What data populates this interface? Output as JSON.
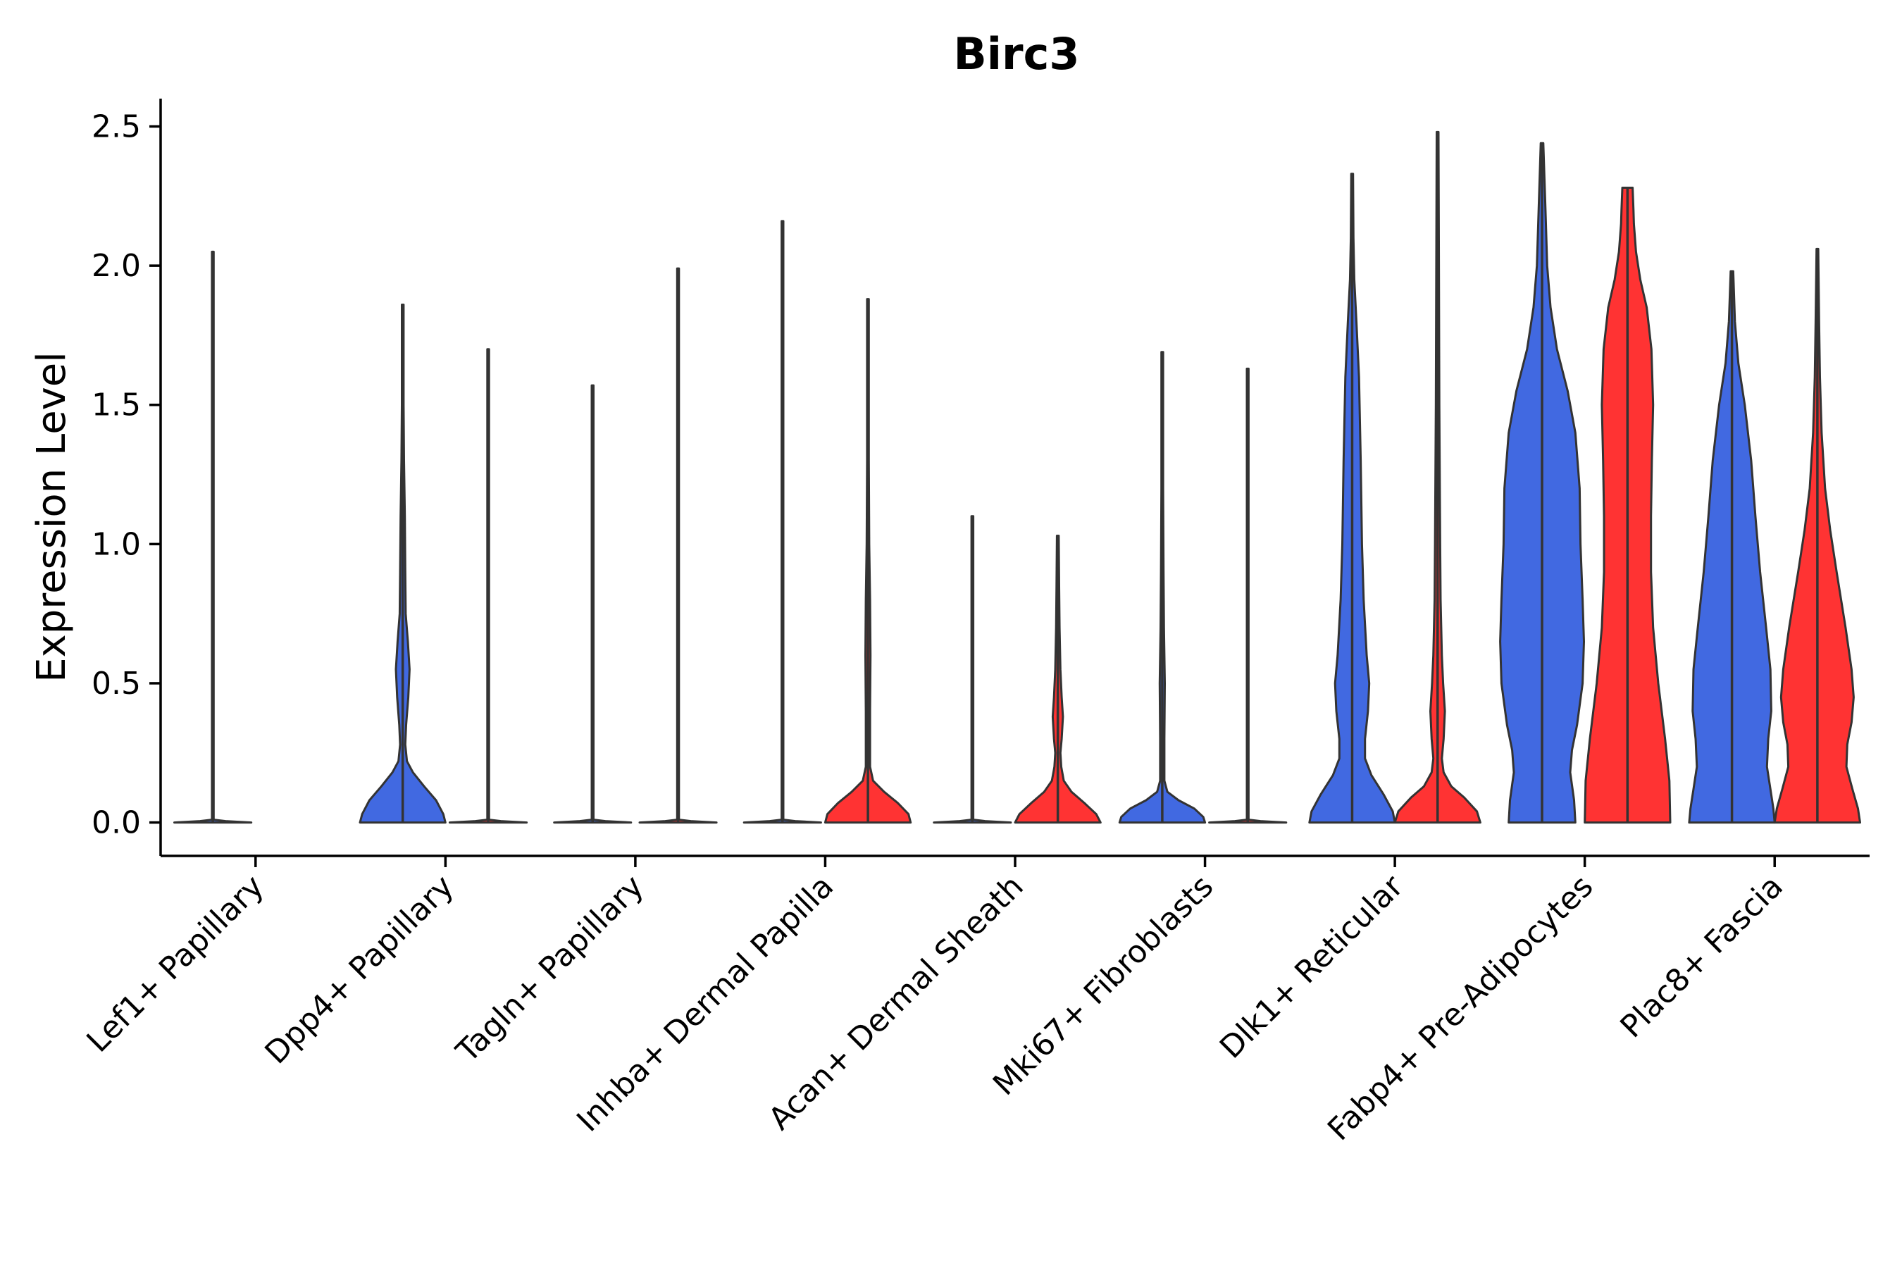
{
  "chart_data": {
    "type": "violin",
    "title": "Birc3",
    "xlabel": "",
    "ylabel": "Expression Level",
    "ylim": [
      -0.12,
      2.6
    ],
    "yticks": [
      0.0,
      0.5,
      1.0,
      1.5,
      2.0,
      2.5
    ],
    "ytick_labels": [
      "0.0",
      "0.5",
      "1.0",
      "1.5",
      "2.0",
      "2.5"
    ],
    "grid": false,
    "legend": "none",
    "series_colors": {
      "group1": "#4169E1",
      "group2": "#FF3333"
    },
    "categories": [
      "Lef1+ Papillary",
      "Dpp4+ Papillary",
      "Tagln+ Papillary",
      "Inhba+ Dermal Papilla",
      "Acan+ Dermal Sheath",
      "Mki67+ Fibroblasts",
      "Dlk1+ Reticular",
      "Fabp4+ Pre-Adipocytes",
      "Plac8+ Fascia"
    ],
    "violins": [
      {
        "category": "Lef1+ Papillary",
        "group": "group1",
        "color": "#4169E1",
        "max": 2.05,
        "density": [
          [
            0,
            0.9
          ],
          [
            0.005,
            0.3
          ],
          [
            0.01,
            0.02
          ],
          [
            2.05,
            0.02
          ]
        ]
      },
      {
        "category": "Lef1+ Papillary",
        "group": "group2",
        "color": "#FF3333",
        "max": 0.0,
        "density": []
      },
      {
        "category": "Dpp4+ Papillary",
        "group": "group1",
        "color": "#4169E1",
        "max": 1.86,
        "density": [
          [
            0,
            1
          ],
          [
            0.03,
            0.95
          ],
          [
            0.08,
            0.78
          ],
          [
            0.13,
            0.5
          ],
          [
            0.18,
            0.24
          ],
          [
            0.22,
            0.1
          ],
          [
            0.28,
            0.06
          ],
          [
            0.35,
            0.08
          ],
          [
            0.45,
            0.13
          ],
          [
            0.55,
            0.16
          ],
          [
            0.65,
            0.12
          ],
          [
            0.75,
            0.07
          ],
          [
            0.9,
            0.06
          ],
          [
            1.1,
            0.05
          ],
          [
            1.3,
            0.03
          ],
          [
            1.5,
            0.02
          ],
          [
            1.86,
            0.02
          ]
        ]
      },
      {
        "category": "Dpp4+ Papillary",
        "group": "group2",
        "color": "#FF3333",
        "max": 1.7,
        "density": [
          [
            0,
            0.9
          ],
          [
            0.005,
            0.3
          ],
          [
            0.01,
            0.02
          ],
          [
            1.7,
            0.02
          ]
        ]
      },
      {
        "category": "Tagln+ Papillary",
        "group": "group1",
        "color": "#4169E1",
        "max": 1.57,
        "density": [
          [
            0,
            0.9
          ],
          [
            0.005,
            0.3
          ],
          [
            0.01,
            0.02
          ],
          [
            1.57,
            0.02
          ]
        ]
      },
      {
        "category": "Tagln+ Papillary",
        "group": "group2",
        "color": "#FF3333",
        "max": 1.99,
        "density": [
          [
            0,
            0.9
          ],
          [
            0.005,
            0.3
          ],
          [
            0.01,
            0.02
          ],
          [
            1.99,
            0.02
          ]
        ]
      },
      {
        "category": "Inhba+ Dermal Papilla",
        "group": "group1",
        "color": "#4169E1",
        "max": 2.16,
        "density": [
          [
            0,
            0.9
          ],
          [
            0.005,
            0.3
          ],
          [
            0.01,
            0.02
          ],
          [
            2.16,
            0.02
          ]
        ]
      },
      {
        "category": "Inhba+ Dermal Papilla",
        "group": "group2",
        "color": "#FF3333",
        "max": 1.88,
        "density": [
          [
            0,
            1
          ],
          [
            0.03,
            0.95
          ],
          [
            0.07,
            0.7
          ],
          [
            0.11,
            0.38
          ],
          [
            0.15,
            0.12
          ],
          [
            0.2,
            0.05
          ],
          [
            0.4,
            0.05
          ],
          [
            0.6,
            0.06
          ],
          [
            0.8,
            0.05
          ],
          [
            1.0,
            0.03
          ],
          [
            1.3,
            0.02
          ],
          [
            1.88,
            0.02
          ]
        ]
      },
      {
        "category": "Acan+ Dermal Sheath",
        "group": "group1",
        "color": "#4169E1",
        "max": 1.1,
        "density": [
          [
            0,
            0.9
          ],
          [
            0.005,
            0.3
          ],
          [
            0.01,
            0.02
          ],
          [
            1.1,
            0.02
          ]
        ]
      },
      {
        "category": "Acan+ Dermal Sheath",
        "group": "group2",
        "color": "#FF3333",
        "max": 1.03,
        "density": [
          [
            0,
            1
          ],
          [
            0.03,
            0.9
          ],
          [
            0.07,
            0.62
          ],
          [
            0.11,
            0.32
          ],
          [
            0.15,
            0.14
          ],
          [
            0.2,
            0.08
          ],
          [
            0.25,
            0.06
          ],
          [
            0.3,
            0.09
          ],
          [
            0.38,
            0.12
          ],
          [
            0.45,
            0.09
          ],
          [
            0.55,
            0.06
          ],
          [
            0.7,
            0.04
          ],
          [
            0.85,
            0.03
          ],
          [
            1.03,
            0.02
          ]
        ]
      },
      {
        "category": "Mki67+ Fibroblasts",
        "group": "group1",
        "color": "#4169E1",
        "max": 1.69,
        "density": [
          [
            0,
            1
          ],
          [
            0.02,
            0.96
          ],
          [
            0.05,
            0.75
          ],
          [
            0.08,
            0.38
          ],
          [
            0.11,
            0.12
          ],
          [
            0.15,
            0.05
          ],
          [
            0.3,
            0.05
          ],
          [
            0.5,
            0.06
          ],
          [
            0.7,
            0.04
          ],
          [
            0.9,
            0.03
          ],
          [
            1.2,
            0.02
          ],
          [
            1.69,
            0.02
          ]
        ]
      },
      {
        "category": "Mki67+ Fibroblasts",
        "group": "group2",
        "color": "#FF3333",
        "max": 1.63,
        "density": [
          [
            0,
            0.9
          ],
          [
            0.005,
            0.3
          ],
          [
            0.01,
            0.02
          ],
          [
            1.63,
            0.02
          ]
        ]
      },
      {
        "category": "Dlk1+ Reticular",
        "group": "group1",
        "color": "#4169E1",
        "max": 2.33,
        "density": [
          [
            0,
            1
          ],
          [
            0.04,
            0.95
          ],
          [
            0.1,
            0.74
          ],
          [
            0.17,
            0.45
          ],
          [
            0.23,
            0.3
          ],
          [
            0.3,
            0.3
          ],
          [
            0.4,
            0.37
          ],
          [
            0.5,
            0.4
          ],
          [
            0.6,
            0.34
          ],
          [
            0.8,
            0.27
          ],
          [
            1.0,
            0.23
          ],
          [
            1.3,
            0.2
          ],
          [
            1.6,
            0.16
          ],
          [
            1.8,
            0.1
          ],
          [
            1.95,
            0.05
          ],
          [
            2.1,
            0.03
          ],
          [
            2.33,
            0.02
          ]
        ]
      },
      {
        "category": "Dlk1+ Reticular",
        "group": "group2",
        "color": "#FF3333",
        "max": 2.48,
        "density": [
          [
            0,
            1
          ],
          [
            0.04,
            0.92
          ],
          [
            0.09,
            0.62
          ],
          [
            0.13,
            0.32
          ],
          [
            0.18,
            0.14
          ],
          [
            0.23,
            0.1
          ],
          [
            0.3,
            0.14
          ],
          [
            0.4,
            0.17
          ],
          [
            0.5,
            0.13
          ],
          [
            0.6,
            0.1
          ],
          [
            0.8,
            0.07
          ],
          [
            1.0,
            0.06
          ],
          [
            1.5,
            0.04
          ],
          [
            2.0,
            0.03
          ],
          [
            2.48,
            0.02
          ]
        ]
      },
      {
        "category": "Fabp4+ Pre-Adipocytes",
        "group": "group1",
        "color": "#4169E1",
        "max": 2.44,
        "density": [
          [
            0,
            0.78
          ],
          [
            0.08,
            0.75
          ],
          [
            0.18,
            0.66
          ],
          [
            0.26,
            0.7
          ],
          [
            0.35,
            0.82
          ],
          [
            0.5,
            0.95
          ],
          [
            0.65,
            0.98
          ],
          [
            0.8,
            0.95
          ],
          [
            1.0,
            0.9
          ],
          [
            1.2,
            0.88
          ],
          [
            1.4,
            0.78
          ],
          [
            1.55,
            0.6
          ],
          [
            1.7,
            0.35
          ],
          [
            1.85,
            0.2
          ],
          [
            2.0,
            0.12
          ],
          [
            2.2,
            0.08
          ],
          [
            2.44,
            0.03
          ]
        ]
      },
      {
        "category": "Fabp4+ Pre-Adipocytes",
        "group": "group2",
        "color": "#FF3333",
        "max": 2.28,
        "density": [
          [
            0,
            1
          ],
          [
            0.15,
            0.98
          ],
          [
            0.3,
            0.88
          ],
          [
            0.5,
            0.72
          ],
          [
            0.7,
            0.6
          ],
          [
            0.9,
            0.55
          ],
          [
            1.1,
            0.55
          ],
          [
            1.3,
            0.57
          ],
          [
            1.5,
            0.6
          ],
          [
            1.7,
            0.56
          ],
          [
            1.85,
            0.45
          ],
          [
            1.95,
            0.3
          ],
          [
            2.05,
            0.2
          ],
          [
            2.15,
            0.15
          ],
          [
            2.2,
            0.14
          ],
          [
            2.28,
            0.12
          ]
        ]
      },
      {
        "category": "Plac8+ Fascia",
        "group": "group1",
        "color": "#4169E1",
        "max": 1.98,
        "density": [
          [
            0,
            1
          ],
          [
            0.05,
            0.97
          ],
          [
            0.12,
            0.9
          ],
          [
            0.2,
            0.82
          ],
          [
            0.3,
            0.85
          ],
          [
            0.4,
            0.92
          ],
          [
            0.55,
            0.9
          ],
          [
            0.7,
            0.8
          ],
          [
            0.9,
            0.66
          ],
          [
            1.1,
            0.55
          ],
          [
            1.3,
            0.45
          ],
          [
            1.5,
            0.3
          ],
          [
            1.65,
            0.15
          ],
          [
            1.8,
            0.07
          ],
          [
            1.98,
            0.03
          ]
        ]
      },
      {
        "category": "Plac8+ Fascia",
        "group": "group2",
        "color": "#FF3333",
        "max": 2.06,
        "density": [
          [
            0,
            1
          ],
          [
            0.05,
            0.95
          ],
          [
            0.12,
            0.82
          ],
          [
            0.2,
            0.68
          ],
          [
            0.28,
            0.7
          ],
          [
            0.36,
            0.8
          ],
          [
            0.45,
            0.85
          ],
          [
            0.55,
            0.8
          ],
          [
            0.7,
            0.66
          ],
          [
            0.9,
            0.45
          ],
          [
            1.05,
            0.3
          ],
          [
            1.2,
            0.18
          ],
          [
            1.4,
            0.1
          ],
          [
            1.6,
            0.06
          ],
          [
            1.8,
            0.04
          ],
          [
            2.06,
            0.02
          ]
        ]
      }
    ]
  }
}
